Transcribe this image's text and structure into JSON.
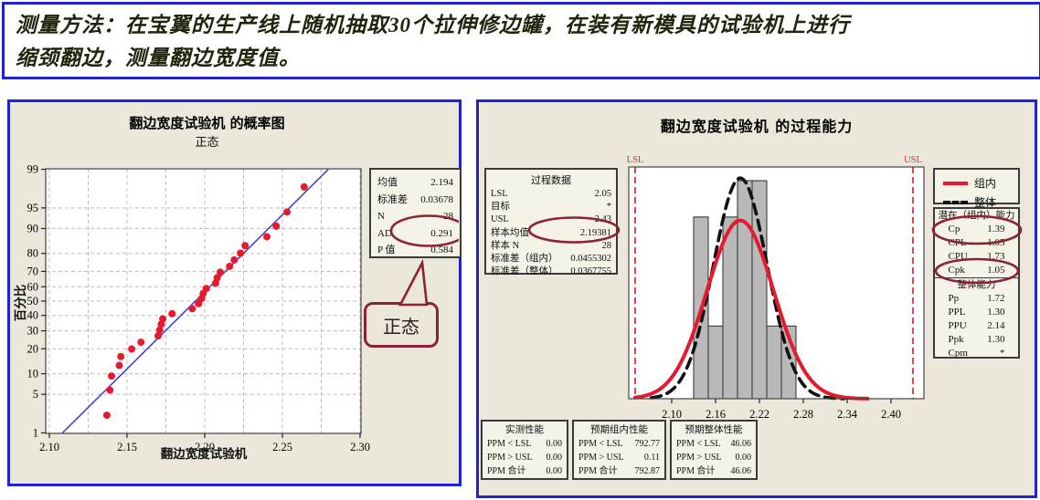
{
  "banner": {
    "line1": "测量方法：在宝翼的生产线上随机抽取30个拉伸修边罐，在装有新模具的试验机上进行",
    "line2": "缩颈翻边，测量翻边宽度值。"
  },
  "colors": {
    "panel_border_blue": "#2323cc",
    "panel_beige": "#ebe8db",
    "box_beige": "#f5f2e7",
    "point_red": "#e8192c",
    "fit_line_blue": "#4444cc",
    "bar_gray": "#b9b9b9",
    "spec_line_red": "#e03333",
    "annotation_maroon": "#8c2332",
    "overall_curve_black": "#111111"
  },
  "chart_data": [
    {
      "type": "scatter",
      "name": "normal-probability-plot",
      "title": "翻边宽度试验机 的概率图",
      "subtitle": "正态",
      "xlabel": "翻边宽度试验机",
      "ylabel": "百分比",
      "xlim": [
        2.1,
        2.3
      ],
      "x_ticks": [
        2.1,
        2.15,
        2.2,
        2.25,
        2.3
      ],
      "x_grid_step": 0.025,
      "y_scale": "normal-probability",
      "y_ticks_percent": [
        1,
        5,
        10,
        20,
        30,
        40,
        50,
        60,
        70,
        80,
        90,
        95,
        99
      ],
      "grid": true,
      "fit_line": {
        "mean": 2.194,
        "stdev": 0.03678,
        "z_range": [
          -2.326,
          2.326
        ]
      },
      "points_value_percent": [
        [
          2.137,
          2.2
        ],
        [
          2.139,
          5.8
        ],
        [
          2.14,
          9.3
        ],
        [
          2.145,
          12.8
        ],
        [
          2.146,
          16.4
        ],
        [
          2.153,
          19.9
        ],
        [
          2.159,
          23.4
        ],
        [
          2.17,
          27.0
        ],
        [
          2.171,
          30.5
        ],
        [
          2.172,
          34.1
        ],
        [
          2.173,
          37.6
        ],
        [
          2.179,
          41.2
        ],
        [
          2.192,
          44.7
        ],
        [
          2.196,
          48.2
        ],
        [
          2.198,
          51.8
        ],
        [
          2.199,
          55.3
        ],
        [
          2.201,
          58.8
        ],
        [
          2.207,
          62.4
        ],
        [
          2.208,
          65.9
        ],
        [
          2.21,
          69.5
        ],
        [
          2.216,
          73.0
        ],
        [
          2.219,
          76.6
        ],
        [
          2.223,
          80.1
        ],
        [
          2.226,
          83.6
        ],
        [
          2.24,
          87.2
        ],
        [
          2.246,
          90.7
        ],
        [
          2.253,
          94.2
        ],
        [
          2.264,
          97.8
        ]
      ],
      "stats_box": {
        "rows": [
          [
            "均值",
            "2.194"
          ],
          [
            "标准差",
            "0.03678"
          ],
          [
            "N",
            "28"
          ],
          [
            "AD",
            "0.291"
          ],
          [
            "P 值",
            "0.584"
          ]
        ],
        "circled_value": "0.584"
      },
      "callout": {
        "label": "正态"
      }
    },
    {
      "type": "histogram",
      "name": "process-capability-chart",
      "title": "翻边宽度试验机  的过程能力",
      "x_ticks": [
        2.1,
        2.16,
        2.22,
        2.28,
        2.34,
        2.4
      ],
      "bins": {
        "start": 2.13,
        "width": 0.02,
        "counts": [
          5,
          2,
          5,
          6,
          6,
          2,
          2
        ]
      },
      "sample_n": 28,
      "lsl": {
        "label": "LSL",
        "value": 2.05
      },
      "usl": {
        "label": "USL",
        "value": 2.43
      },
      "curves": [
        {
          "name": "组内",
          "mean": 2.19381,
          "stdev": 0.0455302,
          "style": "solid-red",
          "range": [
            2.05,
            2.37
          ]
        },
        {
          "name": "整体",
          "mean": 2.19381,
          "stdev": 0.0367755,
          "style": "dashed-black",
          "range": [
            2.072,
            2.338
          ]
        }
      ],
      "process_data": {
        "title": "过程数据",
        "rows": [
          [
            "LSL",
            "2.05"
          ],
          [
            "目标",
            "*"
          ],
          [
            "USL",
            "2.43"
          ],
          [
            "样本均值",
            "2.19381"
          ],
          [
            "样本 N",
            "28"
          ],
          [
            "标准差（组内）",
            "0.0455302"
          ],
          [
            "标准差（整体）",
            "0.0367755"
          ]
        ],
        "circled_row_value": "2.19381"
      },
      "within_capability": {
        "title": "潜在（组内）能力",
        "rows": [
          [
            "Cp",
            "1.39"
          ],
          [
            "CPL",
            "1.05"
          ],
          [
            "CPU",
            "1.73"
          ],
          [
            "Cpk",
            "1.05"
          ]
        ],
        "circled_values": [
          "Cp 1.39",
          "Cpk 1.05"
        ]
      },
      "overall_capability": {
        "title": "整体能力",
        "rows": [
          [
            "Pp",
            "1.72"
          ],
          [
            "PPL",
            "1.30"
          ],
          [
            "PPU",
            "2.14"
          ],
          [
            "Ppk",
            "1.30"
          ],
          [
            "Cpm",
            "*"
          ]
        ]
      },
      "performance_boxes": [
        {
          "title": "实测性能",
          "rows": [
            [
              "PPM < LSL",
              "0.00"
            ],
            [
              "PPM > USL",
              "0.00"
            ],
            [
              "PPM 合计",
              "0.00"
            ]
          ]
        },
        {
          "title": "预期组内性能",
          "rows": [
            [
              "PPM < LSL",
              "792.77"
            ],
            [
              "PPM > USL",
              "0.11"
            ],
            [
              "PPM 合计",
              "792.87"
            ]
          ]
        },
        {
          "title": "预期整体性能",
          "rows": [
            [
              "PPM < LSL",
              "46.06"
            ],
            [
              "PPM > USL",
              "0.00"
            ],
            [
              "PPM 合计",
              "46.06"
            ]
          ]
        }
      ]
    }
  ]
}
